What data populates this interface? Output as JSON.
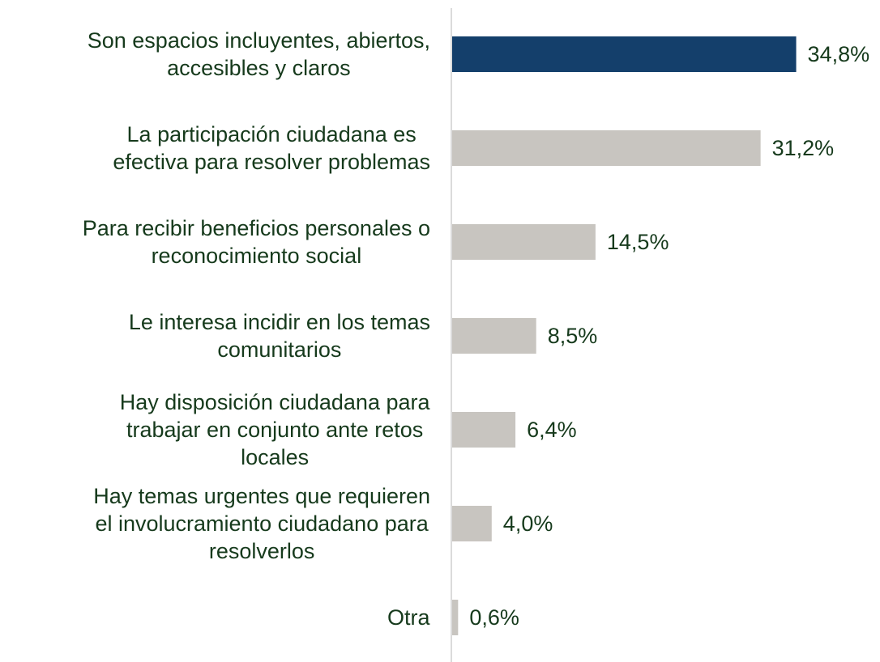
{
  "chart_data": {
    "type": "bar",
    "orientation": "horizontal",
    "categories": [
      [
        "Son espacios incluyentes, abiertos,",
        "accesibles y claros"
      ],
      [
        "La participación ciudadana es",
        "efectiva para resolver problemas"
      ],
      [
        "Para recibir beneficios personales  o",
        "reconocimiento social"
      ],
      [
        "Le interesa incidir en los temas",
        "comunitarios"
      ],
      [
        "Hay disposición ciudadana para",
        "trabajar en conjunto ante retos",
        "locales"
      ],
      [
        "Hay temas urgentes que requieren",
        "el involucramiento ciudadano para",
        "resolverlos"
      ],
      [
        "Otra"
      ]
    ],
    "values": [
      34.8,
      31.2,
      14.5,
      8.5,
      6.4,
      4.0,
      0.6
    ],
    "value_labels": [
      "34,8%",
      "31,2%",
      "14,5%",
      "8,5%",
      "6,4%",
      "4,0%",
      "0,6%"
    ],
    "colors": [
      "#143f6b",
      "#c8c5c0",
      "#c8c5c0",
      "#c8c5c0",
      "#c8c5c0",
      "#c8c5c0",
      "#c8c5c0"
    ],
    "xlim": [
      0,
      35
    ]
  }
}
